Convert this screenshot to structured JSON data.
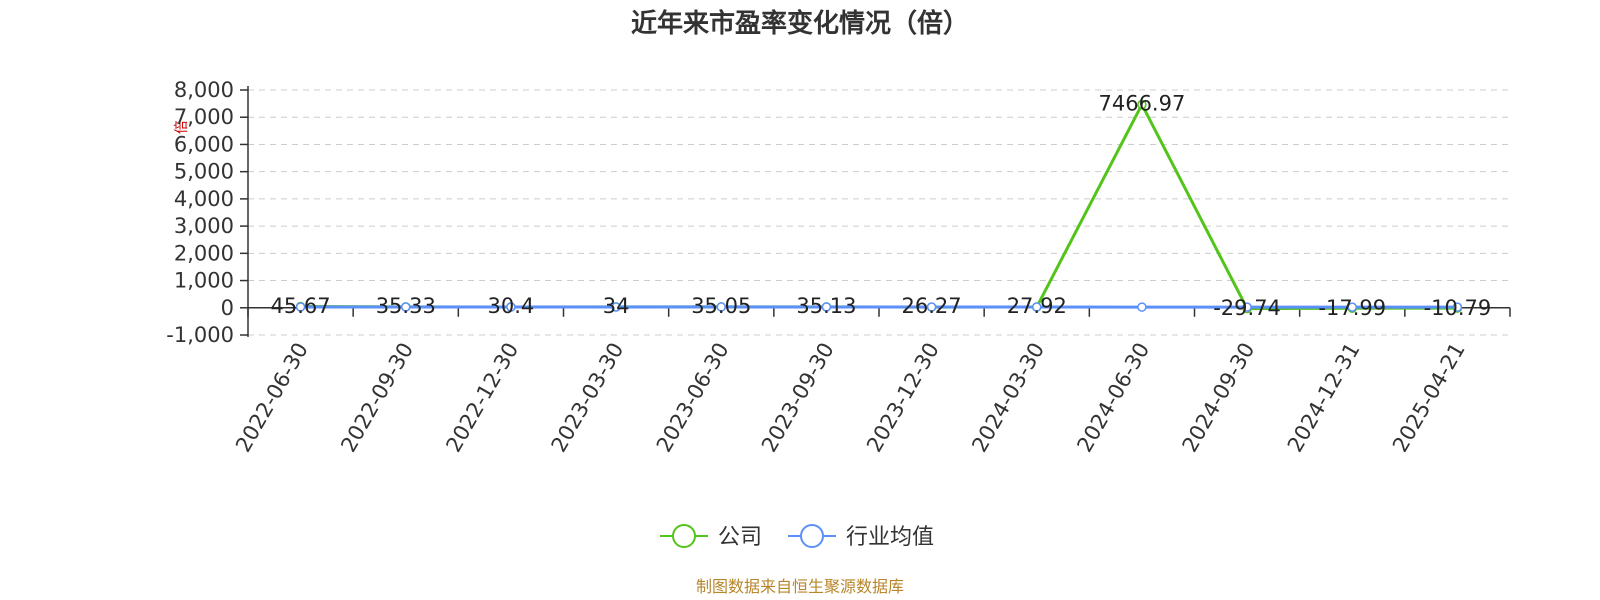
{
  "chart_data": {
    "type": "line",
    "title": "近年来市盈率变化情况（倍）",
    "ylabel": "倍",
    "categories": [
      "2022-06-30",
      "2022-09-30",
      "2022-12-30",
      "2023-03-30",
      "2023-06-30",
      "2023-09-30",
      "2023-12-30",
      "2024-03-30",
      "2024-06-30",
      "2024-09-30",
      "2024-12-31",
      "2025-04-21"
    ],
    "series": [
      {
        "name": "公司",
        "color": "#52c41a",
        "values": [
          45.67,
          35.33,
          30.4,
          34,
          35.05,
          35.13,
          26.27,
          27.92,
          7466.97,
          -29.74,
          -17.99,
          -10.79
        ],
        "labels": [
          "45.67",
          "35.33",
          "30.4",
          "34",
          "35.05",
          "35.13",
          "26.27",
          "27.92",
          "7466.97",
          "-29.74",
          "-17.99",
          "-10.79"
        ]
      },
      {
        "name": "行业均值",
        "color": "#5b8ff9",
        "values": [
          30,
          29,
          28,
          30,
          31,
          30,
          28,
          27,
          26,
          25,
          24,
          24
        ]
      }
    ],
    "ylim": [
      -1000,
      8000
    ],
    "yticks": [
      8000,
      7000,
      6000,
      5000,
      4000,
      3000,
      2000,
      1000,
      0,
      -1000
    ],
    "ytick_labels": [
      "8,000",
      "7,000",
      "6,000",
      "5,000",
      "4,000",
      "3,000",
      "2,000",
      "1,000",
      "0",
      "-1,000"
    ],
    "grid": true,
    "legend_position": "bottom-center"
  },
  "footer": {
    "source": "制图数据来自恒生聚源数据库"
  }
}
